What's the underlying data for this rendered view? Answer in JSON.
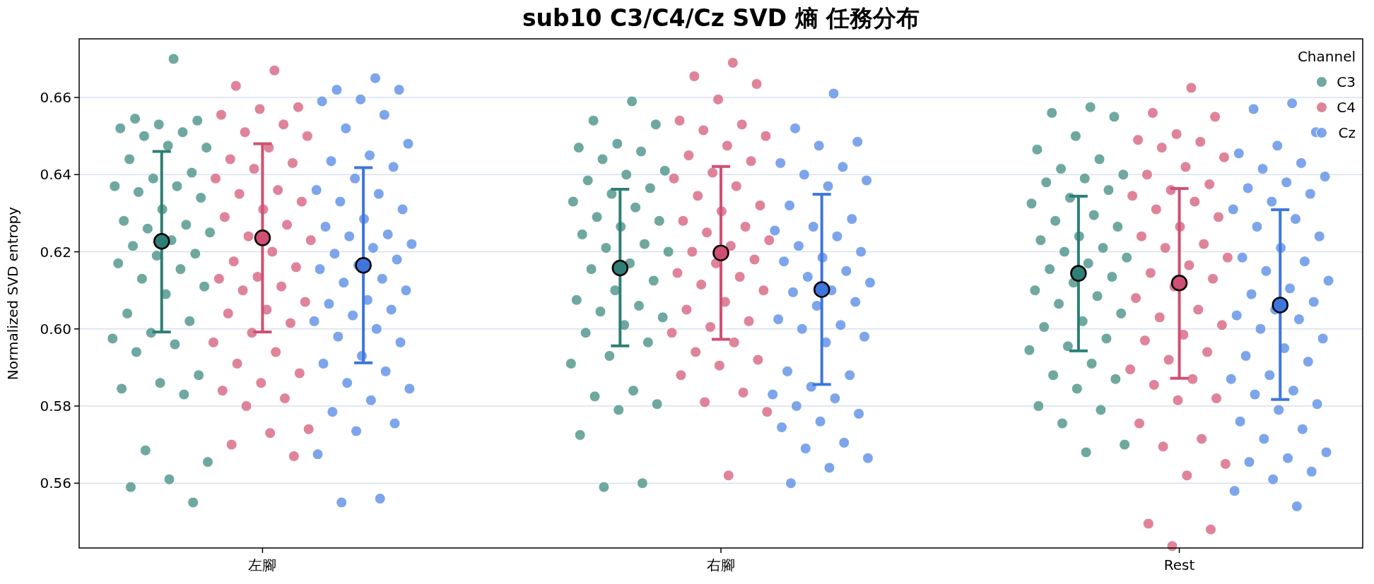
{
  "chart_data": {
    "type": "scatter",
    "title": "sub10 C3/C4/Cz SVD 熵 任務分布",
    "ylabel": "Normalized SVD entropy",
    "legend_title": "Channel",
    "legend": "top right",
    "grid": "y",
    "marker": "circle",
    "categories": [
      "左腳",
      "右腳",
      "Rest"
    ],
    "ylim": [
      0.5432,
      0.6752
    ],
    "yticks": [
      {
        "value": 0.56,
        "label": "0.56"
      },
      {
        "value": 0.58,
        "label": "0.58"
      },
      {
        "value": 0.6,
        "label": "0.60"
      },
      {
        "value": 0.62,
        "label": "0.62"
      },
      {
        "value": 0.64,
        "label": "0.64"
      },
      {
        "value": 0.66,
        "label": "0.66"
      }
    ],
    "series": [
      {
        "name": "C3",
        "color": "#5f9e96",
        "x": [
          "左腳",
          "左腳",
          "左腳",
          "左腳",
          "左腳",
          "左腳",
          "左腳",
          "左腳",
          "左腳",
          "左腳",
          "左腳",
          "左腳",
          "左腳",
          "左腳",
          "左腳",
          "左腳",
          "左腳",
          "左腳",
          "左腳",
          "左腳",
          "左腳",
          "左腳",
          "左腳",
          "左腳",
          "左腳",
          "左腳",
          "左腳",
          "左腳",
          "左腳",
          "左腳",
          "左腳",
          "左腳",
          "左腳",
          "左腳",
          "左腳",
          "左腳",
          "左腳",
          "左腳",
          "左腳",
          "左腳",
          "左腳",
          "左腳",
          "左腳",
          "左腳",
          "左腳",
          "右腳",
          "右腳",
          "右腳",
          "右腳",
          "右腳",
          "右腳",
          "右腳",
          "右腳",
          "右腳",
          "右腳",
          "右腳",
          "右腳",
          "右腳",
          "右腳",
          "右腳",
          "右腳",
          "右腳",
          "右腳",
          "右腳",
          "右腳",
          "右腳",
          "右腳",
          "右腳",
          "右腳",
          "右腳",
          "右腳",
          "右腳",
          "右腳",
          "右腳",
          "右腳",
          "右腳",
          "右腳",
          "右腳",
          "右腳",
          "右腳",
          "右腳",
          "右腳",
          "右腳",
          "右腳",
          "右腳",
          "右腳",
          "Rest",
          "Rest",
          "Rest",
          "Rest",
          "Rest",
          "Rest",
          "Rest",
          "Rest",
          "Rest",
          "Rest",
          "Rest",
          "Rest",
          "Rest",
          "Rest",
          "Rest",
          "Rest",
          "Rest",
          "Rest",
          "Rest",
          "Rest",
          "Rest",
          "Rest",
          "Rest",
          "Rest",
          "Rest",
          "Rest",
          "Rest",
          "Rest",
          "Rest",
          "Rest",
          "Rest",
          "Rest",
          "Rest",
          "Rest",
          "Rest",
          "Rest",
          "Rest",
          "Rest",
          "Rest",
          "Rest",
          "Rest",
          "Rest",
          "Rest"
        ],
        "values": [
          0.67,
          0.6545,
          0.654,
          0.653,
          0.652,
          0.651,
          0.65,
          0.647,
          0.6475,
          0.644,
          0.6405,
          0.639,
          0.637,
          0.637,
          0.6355,
          0.634,
          0.631,
          0.628,
          0.627,
          0.626,
          0.625,
          0.623,
          0.6215,
          0.6195,
          0.619,
          0.617,
          0.6155,
          0.613,
          0.611,
          0.609,
          0.604,
          0.602,
          0.599,
          0.5975,
          0.596,
          0.594,
          0.588,
          0.586,
          0.5845,
          0.583,
          0.5685,
          0.5655,
          0.561,
          0.559,
          0.555,
          0.659,
          0.654,
          0.653,
          0.648,
          0.647,
          0.646,
          0.644,
          0.641,
          0.64,
          0.6385,
          0.6365,
          0.635,
          0.633,
          0.6315,
          0.629,
          0.628,
          0.6265,
          0.6245,
          0.622,
          0.621,
          0.62,
          0.617,
          0.6155,
          0.6125,
          0.61,
          0.6075,
          0.606,
          0.6045,
          0.603,
          0.601,
          0.599,
          0.5965,
          0.593,
          0.591,
          0.584,
          0.5825,
          0.5805,
          0.579,
          0.5725,
          0.56,
          0.559,
          0.6575,
          0.656,
          0.655,
          0.65,
          0.6465,
          0.644,
          0.6415,
          0.64,
          0.639,
          0.638,
          0.636,
          0.634,
          0.6325,
          0.6295,
          0.628,
          0.6265,
          0.624,
          0.623,
          0.621,
          0.62,
          0.6185,
          0.617,
          0.6155,
          0.6135,
          0.612,
          0.61,
          0.6085,
          0.6065,
          0.604,
          0.602,
          0.6005,
          0.5975,
          0.5955,
          0.5945,
          0.591,
          0.588,
          0.587,
          0.5845,
          0.58,
          0.579,
          0.5755,
          0.57,
          0.568
        ]
      },
      {
        "name": "C4",
        "color": "#db7590",
        "x": [
          "左腳",
          "左腳",
          "左腳",
          "左腳",
          "左腳",
          "左腳",
          "左腳",
          "左腳",
          "左腳",
          "左腳",
          "左腳",
          "左腳",
          "左腳",
          "左腳",
          "左腳",
          "左腳",
          "左腳",
          "左腳",
          "左腳",
          "左腳",
          "左腳",
          "左腳",
          "左腳",
          "左腳",
          "左腳",
          "左腳",
          "左腳",
          "左腳",
          "左腳",
          "左腳",
          "左腳",
          "左腳",
          "左腳",
          "左腳",
          "左腳",
          "左腳",
          "左腳",
          "左腳",
          "左腳",
          "左腳",
          "左腳",
          "左腳",
          "左腳",
          "左腳",
          "左腳",
          "右腳",
          "右腳",
          "右腳",
          "右腳",
          "右腳",
          "右腳",
          "右腳",
          "右腳",
          "右腳",
          "右腳",
          "右腳",
          "右腳",
          "右腳",
          "右腳",
          "右腳",
          "右腳",
          "右腳",
          "右腳",
          "右腳",
          "右腳",
          "右腳",
          "右腳",
          "右腳",
          "右腳",
          "右腳",
          "右腳",
          "右腳",
          "右腳",
          "右腳",
          "右腳",
          "右腳",
          "右腳",
          "右腳",
          "右腳",
          "右腳",
          "右腳",
          "右腳",
          "右腳",
          "右腳",
          "右腳",
          "右腳",
          "右腳",
          "右腳",
          "Rest",
          "Rest",
          "Rest",
          "Rest",
          "Rest",
          "Rest",
          "Rest",
          "Rest",
          "Rest",
          "Rest",
          "Rest",
          "Rest",
          "Rest",
          "Rest",
          "Rest",
          "Rest",
          "Rest",
          "Rest",
          "Rest",
          "Rest",
          "Rest",
          "Rest",
          "Rest",
          "Rest",
          "Rest",
          "Rest",
          "Rest",
          "Rest",
          "Rest",
          "Rest",
          "Rest",
          "Rest",
          "Rest",
          "Rest",
          "Rest",
          "Rest",
          "Rest",
          "Rest",
          "Rest",
          "Rest",
          "Rest",
          "Rest",
          "Rest",
          "Rest",
          "Rest",
          "Rest"
        ],
        "values": [
          0.667,
          0.663,
          0.6575,
          0.657,
          0.6555,
          0.653,
          0.651,
          0.65,
          0.647,
          0.644,
          0.643,
          0.6415,
          0.639,
          0.636,
          0.635,
          0.633,
          0.631,
          0.629,
          0.627,
          0.624,
          0.623,
          0.62,
          0.6175,
          0.616,
          0.6135,
          0.613,
          0.611,
          0.61,
          0.607,
          0.605,
          0.604,
          0.6015,
          0.599,
          0.5965,
          0.594,
          0.591,
          0.5885,
          0.586,
          0.584,
          0.582,
          0.58,
          0.574,
          0.573,
          0.57,
          0.567,
          0.669,
          0.6655,
          0.6635,
          0.6595,
          0.654,
          0.653,
          0.6515,
          0.65,
          0.6475,
          0.645,
          0.6435,
          0.6405,
          0.639,
          0.637,
          0.6345,
          0.632,
          0.6305,
          0.628,
          0.6265,
          0.625,
          0.623,
          0.6215,
          0.62,
          0.618,
          0.617,
          0.6145,
          0.6135,
          0.6115,
          0.61,
          0.607,
          0.605,
          0.602,
          0.6005,
          0.599,
          0.5965,
          0.594,
          0.592,
          0.5905,
          0.588,
          0.5835,
          0.581,
          0.5785,
          0.562,
          0.6625,
          0.656,
          0.655,
          0.6505,
          0.649,
          0.6485,
          0.647,
          0.6445,
          0.642,
          0.64,
          0.6375,
          0.636,
          0.6345,
          0.633,
          0.631,
          0.629,
          0.6265,
          0.624,
          0.622,
          0.621,
          0.6185,
          0.6165,
          0.6145,
          0.613,
          0.611,
          0.608,
          0.605,
          0.603,
          0.601,
          0.5985,
          0.597,
          0.594,
          0.592,
          0.5895,
          0.587,
          0.5855,
          0.582,
          0.5815,
          0.5755,
          0.5715,
          0.5695,
          0.565,
          0.562,
          0.5495,
          0.548,
          0.5437
        ]
      },
      {
        "name": "Cz",
        "color": "#6f9be9",
        "x": [
          "左腳",
          "左腳",
          "左腳",
          "左腳",
          "左腳",
          "左腳",
          "左腳",
          "左腳",
          "左腳",
          "左腳",
          "左腳",
          "左腳",
          "左腳",
          "左腳",
          "左腳",
          "左腳",
          "左腳",
          "左腳",
          "左腳",
          "左腳",
          "左腳",
          "左腳",
          "左腳",
          "左腳",
          "左腳",
          "左腳",
          "左腳",
          "左腳",
          "左腳",
          "左腳",
          "左腳",
          "左腳",
          "左腳",
          "左腳",
          "左腳",
          "左腳",
          "左腳",
          "左腳",
          "左腳",
          "左腳",
          "左腳",
          "左腳",
          "左腳",
          "左腳",
          "左腳",
          "左腳",
          "左腳",
          "左腳",
          "左腳",
          "右腳",
          "右腳",
          "右腳",
          "右腳",
          "右腳",
          "右腳",
          "右腳",
          "右腳",
          "右腳",
          "右腳",
          "右腳",
          "右腳",
          "右腳",
          "右腳",
          "右腳",
          "右腳",
          "右腳",
          "右腳",
          "右腳",
          "右腳",
          "右腳",
          "右腳",
          "右腳",
          "右腳",
          "右腳",
          "右腳",
          "右腳",
          "右腳",
          "右腳",
          "右腳",
          "右腳",
          "右腳",
          "右腳",
          "右腳",
          "右腳",
          "右腳",
          "右腳",
          "右腳",
          "右腳",
          "右腳",
          "右腳",
          "右腳",
          "右腳",
          "右腳",
          "Rest",
          "Rest",
          "Rest",
          "Rest",
          "Rest",
          "Rest",
          "Rest",
          "Rest",
          "Rest",
          "Rest",
          "Rest",
          "Rest",
          "Rest",
          "Rest",
          "Rest",
          "Rest",
          "Rest",
          "Rest",
          "Rest",
          "Rest",
          "Rest",
          "Rest",
          "Rest",
          "Rest",
          "Rest",
          "Rest",
          "Rest",
          "Rest",
          "Rest",
          "Rest",
          "Rest",
          "Rest",
          "Rest",
          "Rest",
          "Rest",
          "Rest",
          "Rest",
          "Rest",
          "Rest",
          "Rest",
          "Rest",
          "Rest",
          "Rest",
          "Rest",
          "Rest",
          "Rest",
          "Rest",
          "Rest"
        ],
        "values": [
          0.665,
          0.662,
          0.662,
          0.6595,
          0.659,
          0.6555,
          0.652,
          0.648,
          0.645,
          0.6435,
          0.642,
          0.639,
          0.636,
          0.635,
          0.633,
          0.631,
          0.6285,
          0.6265,
          0.6245,
          0.624,
          0.622,
          0.621,
          0.6195,
          0.618,
          0.6165,
          0.6155,
          0.613,
          0.612,
          0.61,
          0.6075,
          0.6065,
          0.605,
          0.6035,
          0.602,
          0.6,
          0.598,
          0.5965,
          0.593,
          0.591,
          0.589,
          0.586,
          0.5845,
          0.5815,
          0.5785,
          0.5755,
          0.5735,
          0.5675,
          0.556,
          0.555,
          0.661,
          0.652,
          0.6485,
          0.6475,
          0.643,
          0.642,
          0.64,
          0.6385,
          0.637,
          0.632,
          0.6285,
          0.6265,
          0.6255,
          0.624,
          0.6215,
          0.62,
          0.6185,
          0.6175,
          0.615,
          0.6135,
          0.612,
          0.61,
          0.6095,
          0.607,
          0.606,
          0.6025,
          0.601,
          0.6,
          0.598,
          0.5965,
          0.589,
          0.588,
          0.585,
          0.583,
          0.582,
          0.58,
          0.578,
          0.576,
          0.5745,
          0.5705,
          0.569,
          0.5665,
          0.564,
          0.56,
          0.6585,
          0.657,
          0.651,
          0.6475,
          0.6455,
          0.643,
          0.6415,
          0.6395,
          0.638,
          0.6365,
          0.635,
          0.633,
          0.631,
          0.6285,
          0.6265,
          0.624,
          0.621,
          0.6185,
          0.6175,
          0.615,
          0.6125,
          0.6105,
          0.609,
          0.607,
          0.605,
          0.6035,
          0.6025,
          0.6,
          0.5975,
          0.595,
          0.593,
          0.5915,
          0.588,
          0.587,
          0.584,
          0.583,
          0.5805,
          0.579,
          0.576,
          0.574,
          0.5715,
          0.568,
          0.5665,
          0.5655,
          0.563,
          0.561,
          0.558,
          0.554
        ]
      },
      {
        "color": "#2e7f75",
        "x": [
          "左腳",
          "右腳",
          "Rest"
        ],
        "values": [
          0.6227,
          0.6158,
          0.6144
        ],
        "errors": [
          [
            0.5992,
            0.646
          ],
          [
            0.5956,
            0.6362
          ],
          [
            0.5943,
            0.6344
          ]
        ]
      },
      {
        "color": "#cf5072",
        "x": [
          "左腳",
          "右腳",
          "Rest"
        ],
        "values": [
          0.6236,
          0.6197,
          0.6119
        ],
        "errors": [
          [
            0.5992,
            0.648
          ],
          [
            0.5973,
            0.6421
          ],
          [
            0.5872,
            0.6364
          ]
        ]
      },
      {
        "color": "#3f76dc",
        "x": [
          "左腳",
          "右腳",
          "Rest"
        ],
        "values": [
          0.6165,
          0.6102,
          0.6062
        ],
        "errors": [
          [
            0.5912,
            0.6418
          ],
          [
            0.5856,
            0.6349
          ],
          [
            0.5817,
            0.6309
          ]
        ]
      }
    ]
  }
}
